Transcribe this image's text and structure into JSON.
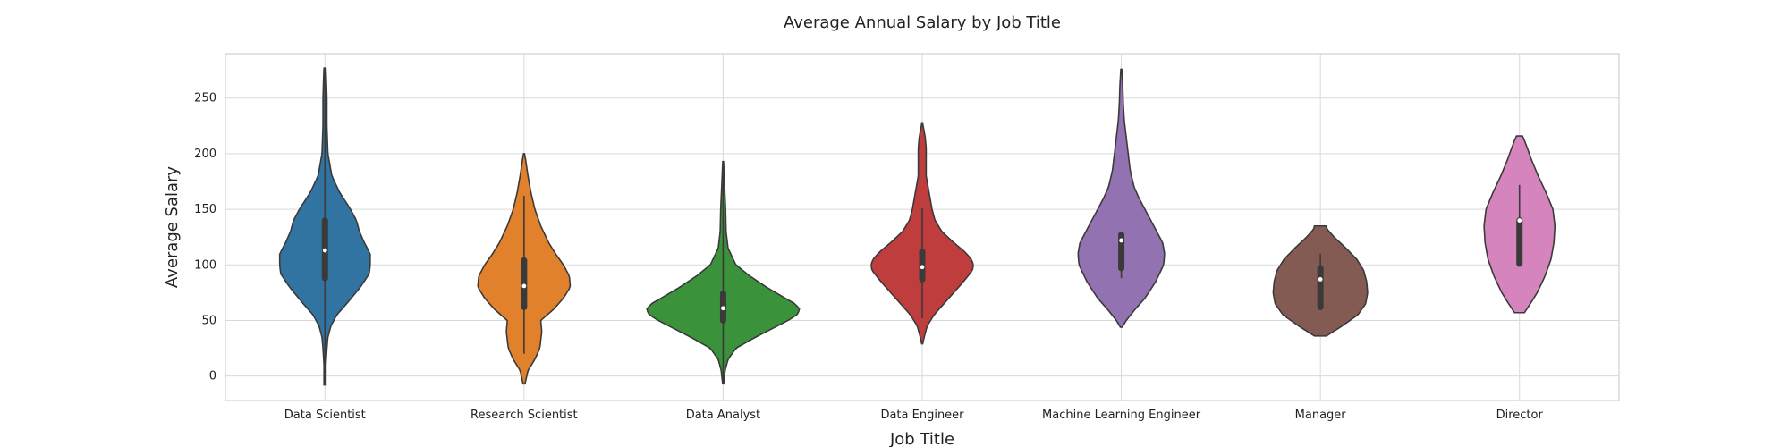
{
  "chart_data": {
    "type": "violin",
    "title": "Average Annual Salary by Job Title",
    "xlabel": "Job Title",
    "ylabel": "Average Salary",
    "ylim": [
      -22,
      290
    ],
    "yticks": [
      0,
      50,
      100,
      150,
      200,
      250
    ],
    "grid": true,
    "categories": [
      "Data Scientist",
      "Research Scientist",
      "Data Analyst",
      "Data Engineer",
      "Machine Learning Engineer",
      "Manager",
      "Director"
    ],
    "series": [
      {
        "color": "#3274a1",
        "range": [
          -8,
          277
        ],
        "quartiles": [
          88,
          113,
          140
        ],
        "whiskers": [
          -8,
          277
        ],
        "density": [
          [
            -8,
            0.01
          ],
          [
            10,
            0.01
          ],
          [
            25,
            0.02
          ],
          [
            35,
            0.03
          ],
          [
            45,
            0.06
          ],
          [
            55,
            0.12
          ],
          [
            65,
            0.22
          ],
          [
            80,
            0.36
          ],
          [
            92,
            0.45
          ],
          [
            100,
            0.46
          ],
          [
            110,
            0.46
          ],
          [
            120,
            0.4
          ],
          [
            130,
            0.35
          ],
          [
            140,
            0.32
          ],
          [
            150,
            0.26
          ],
          [
            165,
            0.15
          ],
          [
            180,
            0.07
          ],
          [
            200,
            0.03
          ],
          [
            225,
            0.02
          ],
          [
            250,
            0.02
          ],
          [
            265,
            0.015
          ],
          [
            277,
            0.01
          ]
        ]
      },
      {
        "color": "#e1812c",
        "range": [
          -7,
          200
        ],
        "quartiles": [
          62,
          81,
          104
        ],
        "whiskers": [
          20,
          162
        ],
        "density": [
          [
            -7,
            0.01
          ],
          [
            5,
            0.04
          ],
          [
            15,
            0.11
          ],
          [
            25,
            0.16
          ],
          [
            40,
            0.18
          ],
          [
            50,
            0.17
          ],
          [
            60,
            0.3
          ],
          [
            70,
            0.4
          ],
          [
            80,
            0.47
          ],
          [
            90,
            0.46
          ],
          [
            100,
            0.4
          ],
          [
            110,
            0.32
          ],
          [
            120,
            0.25
          ],
          [
            135,
            0.17
          ],
          [
            150,
            0.11
          ],
          [
            165,
            0.07
          ],
          [
            180,
            0.04
          ],
          [
            195,
            0.015
          ],
          [
            200,
            0.005
          ]
        ]
      },
      {
        "color": "#3a923a",
        "range": [
          -7,
          193
        ],
        "quartiles": [
          50,
          61,
          74
        ],
        "whiskers": [
          -7,
          193
        ],
        "density": [
          [
            -7,
            0.005
          ],
          [
            5,
            0.02
          ],
          [
            15,
            0.05
          ],
          [
            25,
            0.13
          ],
          [
            35,
            0.33
          ],
          [
            45,
            0.55
          ],
          [
            50,
            0.66
          ],
          [
            55,
            0.75
          ],
          [
            60,
            0.78
          ],
          [
            65,
            0.73
          ],
          [
            70,
            0.63
          ],
          [
            80,
            0.44
          ],
          [
            90,
            0.27
          ],
          [
            100,
            0.13
          ],
          [
            115,
            0.05
          ],
          [
            130,
            0.03
          ],
          [
            150,
            0.025
          ],
          [
            170,
            0.015
          ],
          [
            185,
            0.008
          ],
          [
            193,
            0.004
          ]
        ]
      },
      {
        "color": "#c03d3e",
        "range": [
          29,
          227
        ],
        "quartiles": [
          87,
          98,
          112
        ],
        "whiskers": [
          52,
          151
        ],
        "density": [
          [
            29,
            0.005
          ],
          [
            35,
            0.02
          ],
          [
            45,
            0.05
          ],
          [
            55,
            0.12
          ],
          [
            65,
            0.22
          ],
          [
            75,
            0.32
          ],
          [
            85,
            0.42
          ],
          [
            95,
            0.51
          ],
          [
            100,
            0.52
          ],
          [
            105,
            0.5
          ],
          [
            112,
            0.43
          ],
          [
            120,
            0.32
          ],
          [
            130,
            0.2
          ],
          [
            140,
            0.13
          ],
          [
            150,
            0.1
          ],
          [
            165,
            0.07
          ],
          [
            180,
            0.04
          ],
          [
            195,
            0.04
          ],
          [
            205,
            0.04
          ],
          [
            215,
            0.03
          ],
          [
            227,
            0.005
          ]
        ]
      },
      {
        "color": "#9372b2",
        "range": [
          44,
          276
        ],
        "quartiles": [
          97,
          122,
          127
        ],
        "whiskers": [
          88,
          127
        ],
        "density": [
          [
            44,
            0.01
          ],
          [
            50,
            0.05
          ],
          [
            60,
            0.14
          ],
          [
            70,
            0.24
          ],
          [
            85,
            0.35
          ],
          [
            100,
            0.43
          ],
          [
            110,
            0.44
          ],
          [
            120,
            0.42
          ],
          [
            130,
            0.36
          ],
          [
            140,
            0.3
          ],
          [
            150,
            0.24
          ],
          [
            160,
            0.18
          ],
          [
            170,
            0.13
          ],
          [
            185,
            0.09
          ],
          [
            200,
            0.07
          ],
          [
            215,
            0.05
          ],
          [
            230,
            0.03
          ],
          [
            245,
            0.02
          ],
          [
            260,
            0.015
          ],
          [
            276,
            0.005
          ]
        ]
      },
      {
        "color": "#845b53",
        "range": [
          36,
          135
        ],
        "quartiles": [
          62,
          87,
          97
        ],
        "whiskers": [
          62,
          110
        ],
        "density": [
          [
            36,
            0.06
          ],
          [
            45,
            0.22
          ],
          [
            55,
            0.38
          ],
          [
            65,
            0.46
          ],
          [
            75,
            0.48
          ],
          [
            85,
            0.47
          ],
          [
            95,
            0.44
          ],
          [
            105,
            0.37
          ],
          [
            115,
            0.26
          ],
          [
            125,
            0.14
          ],
          [
            132,
            0.07
          ],
          [
            135,
            0.06
          ]
        ]
      },
      {
        "color": "#d684bd",
        "range": [
          57,
          216
        ],
        "quartiles": [
          101,
          140,
          140
        ],
        "whiskers": [
          101,
          172
        ],
        "density": [
          [
            57,
            0.05
          ],
          [
            65,
            0.11
          ],
          [
            75,
            0.18
          ],
          [
            90,
            0.26
          ],
          [
            105,
            0.32
          ],
          [
            120,
            0.35
          ],
          [
            135,
            0.36
          ],
          [
            150,
            0.34
          ],
          [
            165,
            0.27
          ],
          [
            180,
            0.19
          ],
          [
            195,
            0.12
          ],
          [
            205,
            0.08
          ],
          [
            212,
            0.05
          ],
          [
            216,
            0.03
          ]
        ]
      }
    ]
  }
}
